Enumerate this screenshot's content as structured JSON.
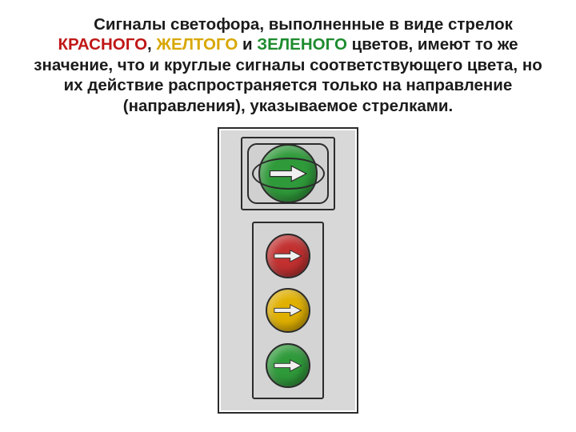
{
  "paragraph": {
    "s1": "Сигналы светофора, выполненные в виде стрелок ",
    "red": "КРАСНОГО",
    "s2": ", ",
    "yellow": "ЖЕЛТОГО",
    "s3": " и ",
    "green": "ЗЕЛЕНОГО",
    "s4": " цветов, имеют то же значение, что и круглые сигналы соответствующего цвета, но их действие распространяется только на направление (направления), указываемое стрелками."
  },
  "traffic_light": {
    "figure_background": "#d8d8d8",
    "figure_border": "#2b2b2b",
    "panel_background": "#d4d4d4",
    "top_panel": {
      "lenses": [
        {
          "color": "#2f9a3a",
          "name": "green",
          "arrow": "right",
          "size": "big",
          "oval": true
        }
      ]
    },
    "bottom_panel": {
      "lenses": [
        {
          "color": "#c23030",
          "name": "red",
          "arrow": "right",
          "size": "sm",
          "oval": false
        },
        {
          "color": "#e0b000",
          "name": "yellow",
          "arrow": "right",
          "size": "sm",
          "oval": false
        },
        {
          "color": "#2f9a3a",
          "name": "green",
          "arrow": "right",
          "size": "sm",
          "oval": false
        }
      ]
    },
    "arrow_fill": "#f0f0f0",
    "arrow_stroke": "#2b2b2b"
  }
}
